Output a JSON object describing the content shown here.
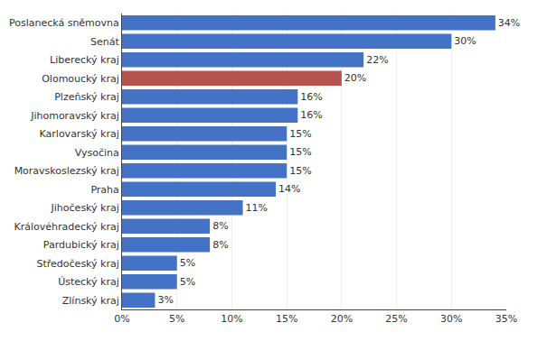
{
  "chart_data": {
    "type": "bar",
    "orientation": "horizontal",
    "categories": [
      "Poslanecká sněmovna",
      "Senát",
      "Liberecký kraj",
      "Olomoucký kraj",
      "Plzeňský kraj",
      "Jihomoravský kraj",
      "Karlovarský kraj",
      "Vysočina",
      "Moravskoslezský kraj",
      "Praha",
      "Jihočeský kraj",
      "Královéhradecký kraj",
      "Pardubický kraj",
      "Středočeský kraj",
      "Ústecký kraj",
      "Zlínský kraj"
    ],
    "values": [
      34,
      30,
      22,
      20,
      16,
      16,
      15,
      15,
      15,
      14,
      11,
      8,
      8,
      5,
      5,
      3
    ],
    "value_labels": [
      "34%",
      "30%",
      "22%",
      "20%",
      "16%",
      "16%",
      "15%",
      "15%",
      "15%",
      "14%",
      "11%",
      "8%",
      "8%",
      "5%",
      "5%",
      "3%"
    ],
    "data_labels": true,
    "colors": [
      "#4472c4",
      "#4472c4",
      "#4472c4",
      "#b85450",
      "#4472c4",
      "#4472c4",
      "#4472c4",
      "#4472c4",
      "#4472c4",
      "#4472c4",
      "#4472c4",
      "#4472c4",
      "#4472c4",
      "#4472c4",
      "#4472c4",
      "#4472c4"
    ],
    "xlim": [
      0,
      35
    ],
    "xticks": [
      {
        "value": 0,
        "label": "0%"
      },
      {
        "value": 5,
        "label": "5%"
      },
      {
        "value": 10,
        "label": "10%"
      },
      {
        "value": 15,
        "label": "15%"
      },
      {
        "value": 20,
        "label": "20%"
      },
      {
        "value": 25,
        "label": "25%"
      },
      {
        "value": 30,
        "label": "30%"
      },
      {
        "value": 35,
        "label": "35%"
      }
    ],
    "grid": true
  }
}
